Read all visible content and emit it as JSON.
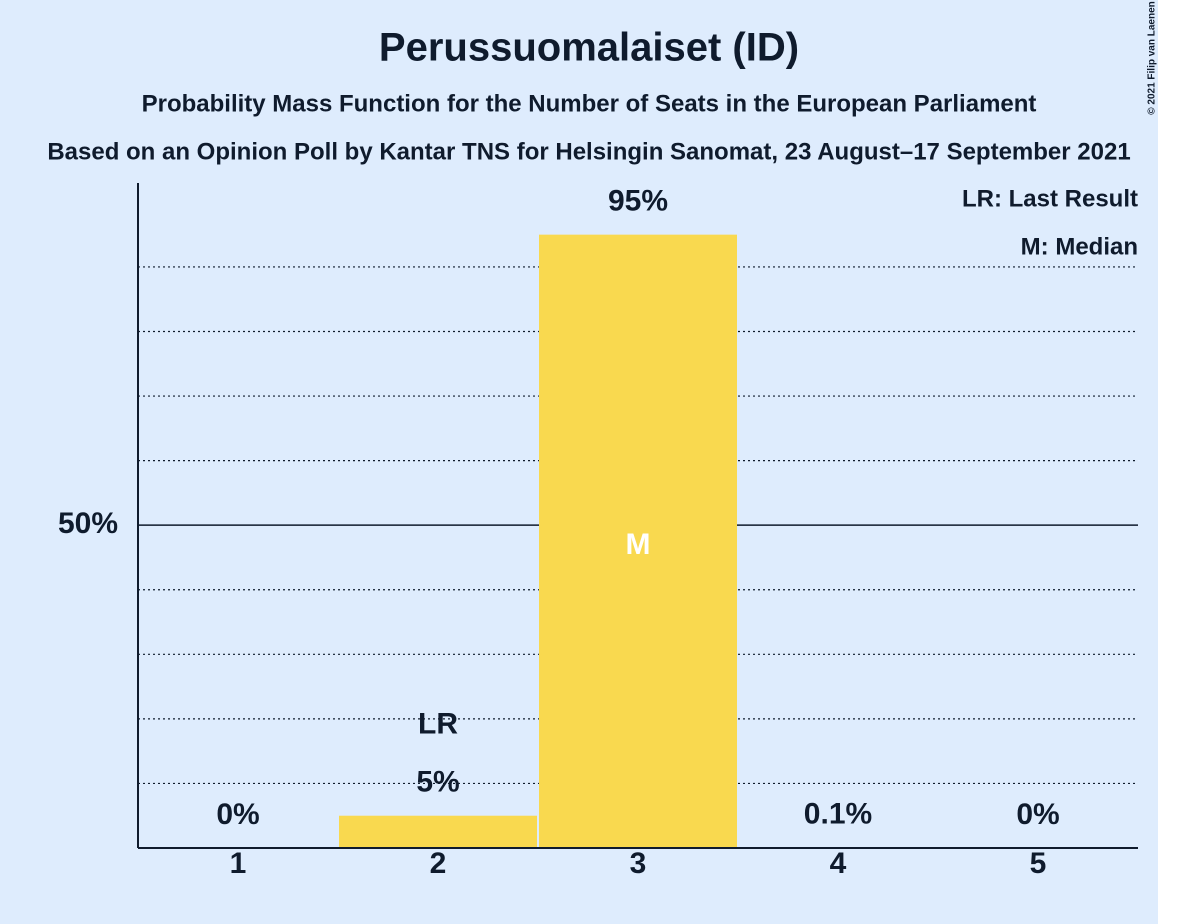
{
  "chart_data": {
    "type": "bar",
    "title": "Perussuomalaiset (ID)",
    "subtitle": [
      "Probability Mass Function for the Number of Seats in the European Parliament",
      "Based on an Opinion Poll by Kantar TNS for Helsingin Sanomat, 23 August–17 September 2021"
    ],
    "copyright": "© 2021 Filip van Laenen",
    "categories": [
      "1",
      "2",
      "3",
      "4",
      "5"
    ],
    "values": [
      0,
      5,
      95,
      0.1,
      0
    ],
    "value_labels": [
      "0%",
      "5%",
      "95%",
      "0.1%",
      "0%"
    ],
    "color": "#f9d94f",
    "ylim": [
      0,
      103
    ],
    "yticks": [
      {
        "value": 50,
        "label": "50%"
      }
    ],
    "minor_yticks": [
      10,
      20,
      30,
      40,
      60,
      70,
      80,
      90
    ],
    "annotations": [
      {
        "text": "LR",
        "category": "2"
      },
      {
        "text": "M",
        "category": "3"
      }
    ],
    "legend": [
      "LR: Last Result",
      "M: Median"
    ]
  }
}
